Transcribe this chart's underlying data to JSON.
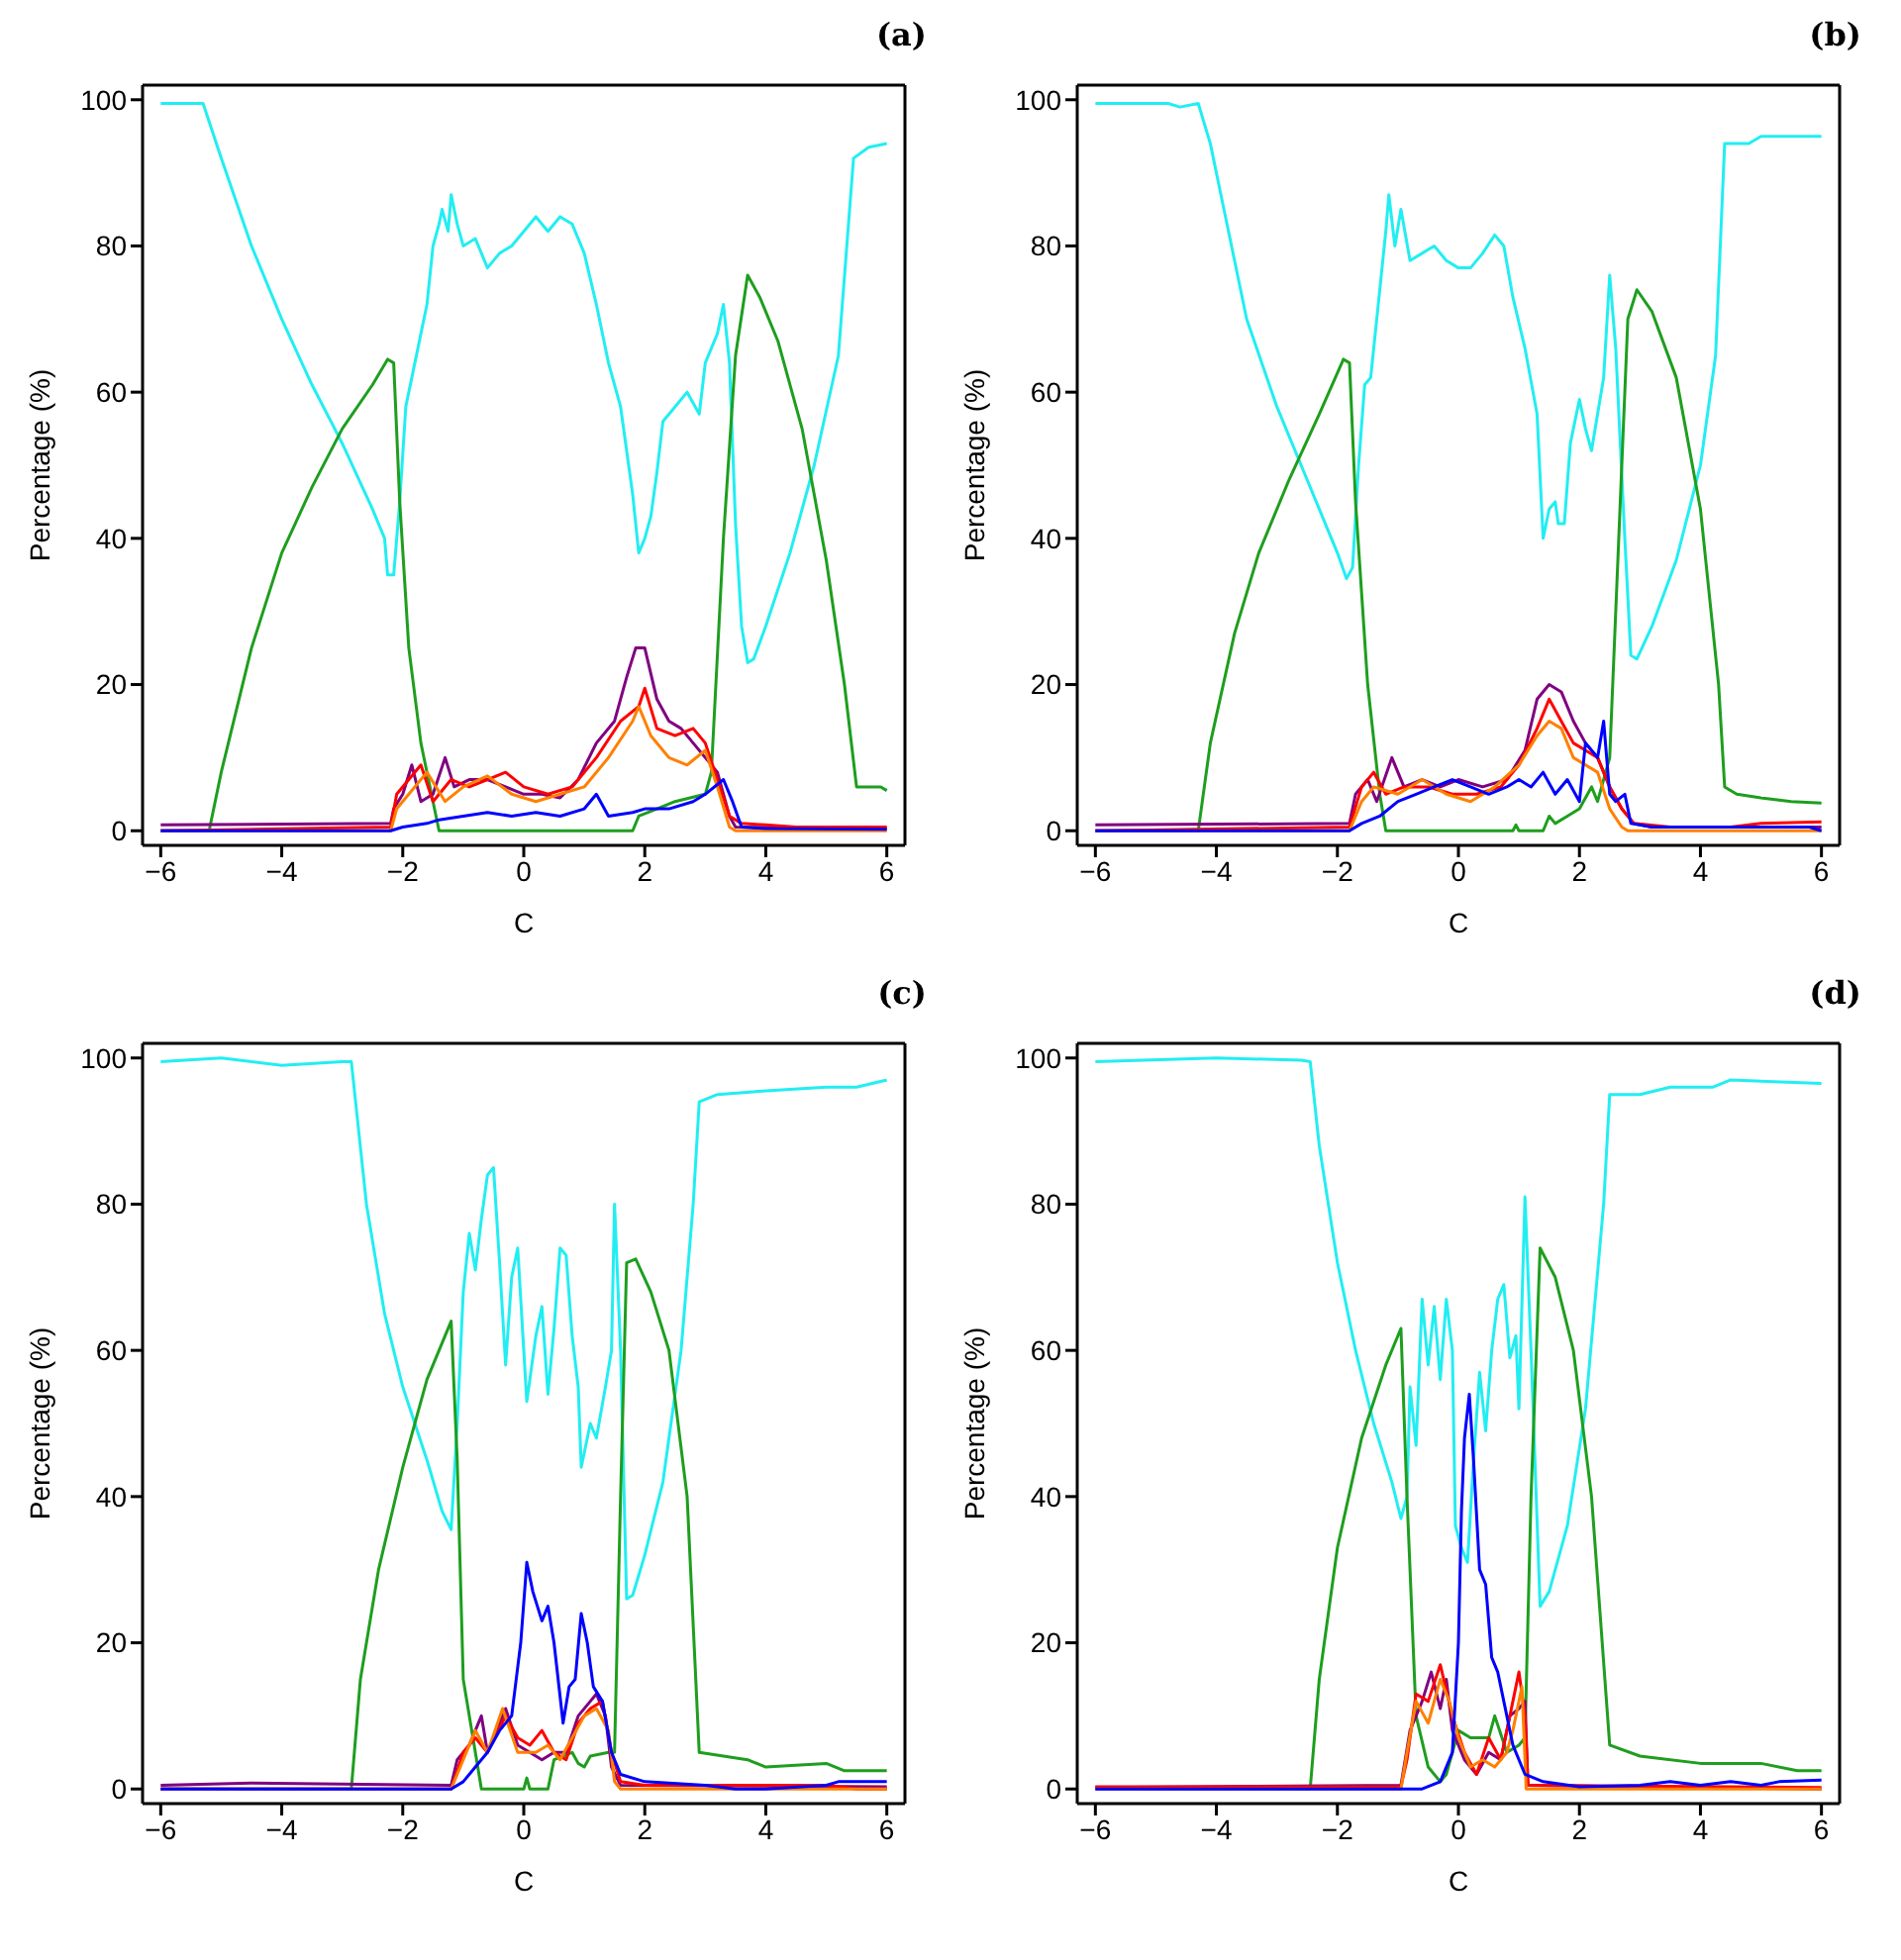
{
  "chart_data": [
    {
      "type": "line",
      "title": "(a)",
      "xlabel": "C",
      "ylabel": "Percentage (%)",
      "xlim": [
        -6.3,
        6.3
      ],
      "xticks": [
        -6,
        -4,
        -2,
        0,
        2,
        4,
        6
      ],
      "ylim": [
        -2,
        102
      ],
      "yticks": [
        0,
        20,
        40,
        60,
        80,
        100
      ],
      "series": [
        {
          "color": "#22eef2",
          "x": [
            -6,
            -5.3,
            -5,
            -4.5,
            -4,
            -3.5,
            -3,
            -2.5,
            -2.3,
            -2.25,
            -2.15,
            -2.05,
            -1.95,
            -1.85,
            -1.7,
            -1.6,
            -1.5,
            -1.4,
            -1.35,
            -1.25,
            -1.2,
            -1.1,
            -1,
            -0.8,
            -0.6,
            -0.4,
            -0.2,
            0,
            0.2,
            0.4,
            0.6,
            0.8,
            1,
            1.2,
            1.4,
            1.6,
            1.8,
            1.9,
            2,
            2.1,
            2.2,
            2.3,
            2.5,
            2.7,
            2.9,
            3,
            3.2,
            3.3,
            3.4,
            3.5,
            3.6,
            3.7,
            3.8,
            4,
            4.4,
            4.8,
            5.2,
            5.45,
            5.7,
            6
          ],
          "values": [
            99.5,
            99.5,
            92,
            80,
            70,
            61,
            53,
            44,
            40,
            35,
            35,
            45,
            58,
            62,
            68,
            72,
            80,
            83,
            85,
            82,
            87,
            83,
            80,
            81,
            77,
            79,
            80,
            82,
            84,
            82,
            84,
            83,
            79,
            72,
            64,
            58,
            46,
            38,
            40,
            43,
            49,
            56,
            58,
            60,
            57,
            64,
            68,
            72,
            64,
            42,
            28,
            23,
            23.5,
            28,
            38,
            50,
            65,
            92,
            93.5,
            94
          ]
        },
        {
          "color": "#1e9e1e",
          "x": [
            -6,
            -5.2,
            -5,
            -4.5,
            -4,
            -3.5,
            -3,
            -2.5,
            -2.25,
            -2.15,
            -2.05,
            -1.9,
            -1.7,
            -1.5,
            -1.4,
            1.8,
            1.9,
            2.2,
            2.5,
            3,
            3.1,
            3.3,
            3.5,
            3.7,
            3.9,
            4.2,
            4.6,
            5,
            5.3,
            5.5,
            5.9,
            6
          ],
          "values": [
            0,
            0,
            8,
            25,
            38,
            47,
            55,
            61,
            64.5,
            64,
            45,
            25,
            12,
            4,
            0,
            0,
            2,
            3,
            4,
            5,
            8,
            40,
            65,
            76,
            73,
            67,
            55,
            37,
            20,
            6,
            6,
            5.5
          ]
        },
        {
          "color": "#800080",
          "x": [
            -6,
            -2.2,
            -2.15,
            -2,
            -1.85,
            -1.7,
            -1.5,
            -1.3,
            -1.15,
            -0.9,
            -0.6,
            -0.3,
            0,
            0.3,
            0.6,
            0.9,
            1.2,
            1.5,
            1.7,
            1.85,
            2,
            2.2,
            2.4,
            2.6,
            2.8,
            3,
            3.2,
            3.4,
            3.5,
            6
          ],
          "values": [
            0.8,
            1,
            3,
            5,
            9,
            4,
            5,
            10,
            6,
            7,
            7,
            6,
            5,
            5,
            4.5,
            7,
            12,
            15,
            21,
            25,
            25,
            18,
            15,
            14,
            12,
            10,
            8,
            2,
            0.5,
            0.3
          ]
        },
        {
          "color": "#ff0000",
          "x": [
            -6,
            -2.2,
            -2.1,
            -1.9,
            -1.7,
            -1.5,
            -1.2,
            -0.9,
            -0.6,
            -0.3,
            0,
            0.4,
            0.8,
            1.2,
            1.6,
            1.9,
            2,
            2.2,
            2.5,
            2.8,
            3,
            3.2,
            3.4,
            3.6,
            4,
            4.5,
            5,
            6
          ],
          "values": [
            0,
            0.5,
            5,
            7,
            9,
            4,
            7,
            6,
            7,
            8,
            6,
            5,
            6,
            10,
            15,
            17,
            19.5,
            14,
            13,
            14,
            12,
            7,
            2,
            1,
            0.8,
            0.5,
            0.5,
            0.5
          ]
        },
        {
          "color": "#ff8000",
          "x": [
            -6,
            -2.2,
            -2.1,
            -1.9,
            -1.6,
            -1.3,
            -1,
            -0.6,
            -0.2,
            0.2,
            0.6,
            1,
            1.4,
            1.8,
            1.9,
            2.1,
            2.4,
            2.7,
            3,
            3.2,
            3.4,
            3.5,
            6
          ],
          "values": [
            0,
            0,
            3,
            5,
            8,
            4,
            6,
            7.5,
            5,
            4,
            5,
            6,
            10,
            15,
            17,
            13,
            10,
            9,
            11,
            6,
            0.5,
            0,
            0
          ]
        },
        {
          "color": "#0000ff",
          "x": [
            -6,
            -2.2,
            -2,
            -1.6,
            -1.4,
            -1,
            -0.6,
            -0.2,
            0.2,
            0.6,
            1,
            1.2,
            1.4,
            1.8,
            2,
            2.4,
            2.8,
            3,
            3.3,
            3.45,
            3.6,
            4,
            6
          ],
          "values": [
            0,
            0,
            0.5,
            1,
            1.5,
            2,
            2.5,
            2,
            2.5,
            2,
            3,
            5,
            2,
            2.5,
            3,
            3,
            4,
            5,
            7,
            4,
            0.5,
            0.3,
            0.2
          ]
        }
      ]
    },
    {
      "type": "line",
      "title": "(b)",
      "xlabel": "C",
      "ylabel": "Percentage (%)",
      "xlim": [
        -6.3,
        6.3
      ],
      "xticks": [
        -6,
        -4,
        -2,
        0,
        2,
        4,
        6
      ],
      "ylim": [
        -2,
        102
      ],
      "yticks": [
        0,
        20,
        40,
        60,
        80,
        100
      ],
      "series": [
        {
          "color": "#22eef2",
          "x": [
            -6,
            -4.8,
            -4.6,
            -4.3,
            -4.1,
            -3.8,
            -3.5,
            -3,
            -2.5,
            -2,
            -1.85,
            -1.75,
            -1.65,
            -1.55,
            -1.45,
            -1.35,
            -1.2,
            -1.15,
            -1.05,
            -0.95,
            -0.8,
            -0.6,
            -0.4,
            -0.2,
            0,
            0.2,
            0.4,
            0.6,
            0.75,
            0.9,
            1.1,
            1.3,
            1.4,
            1.5,
            1.6,
            1.65,
            1.75,
            1.85,
            2,
            2.1,
            2.2,
            2.3,
            2.4,
            2.5,
            2.6,
            2.75,
            2.85,
            2.95,
            3.2,
            3.6,
            4,
            4.25,
            4.4,
            4.8,
            5,
            6
          ],
          "values": [
            99.5,
            99.5,
            99,
            99.5,
            94,
            82,
            70,
            58,
            48,
            38,
            34.5,
            36,
            50,
            61,
            62,
            70,
            82,
            87,
            80,
            85,
            78,
            79,
            80,
            78,
            77,
            77,
            79,
            81.5,
            80,
            73,
            66,
            57,
            40,
            44,
            45,
            42,
            42,
            53,
            59,
            55,
            52,
            57,
            62,
            76,
            66,
            40,
            24,
            23.5,
            28,
            37,
            50,
            65,
            94,
            94,
            95,
            95
          ]
        },
        {
          "color": "#1e9e1e",
          "x": [
            -6,
            -4.3,
            -4.1,
            -3.7,
            -3.3,
            -2.8,
            -2.3,
            -1.9,
            -1.8,
            -1.7,
            -1.5,
            -1.3,
            -1.2,
            0.9,
            0.95,
            1,
            1.4,
            1.5,
            1.6,
            1.8,
            2,
            2.2,
            2.3,
            2.5,
            2.65,
            2.8,
            2.95,
            3.2,
            3.6,
            4,
            4.3,
            4.4,
            4.6,
            5,
            5.5,
            6
          ],
          "values": [
            0,
            0,
            12,
            27,
            38,
            48,
            57,
            64.5,
            64,
            45,
            20,
            5,
            0,
            0,
            0.8,
            0,
            0,
            2,
            1,
            2,
            3,
            6,
            4,
            10,
            40,
            70,
            74,
            71,
            62,
            44,
            20,
            6,
            5,
            4.5,
            4,
            3.8
          ]
        },
        {
          "color": "#800080",
          "x": [
            -6,
            -1.8,
            -1.7,
            -1.5,
            -1.35,
            -1.1,
            -0.9,
            -0.6,
            -0.3,
            0,
            0.4,
            0.8,
            1.1,
            1.3,
            1.5,
            1.7,
            1.9,
            2.1,
            2.3,
            2.5,
            2.7,
            2.9,
            3.2,
            6
          ],
          "values": [
            0.8,
            1,
            5,
            7,
            4,
            10,
            6,
            7,
            6,
            7,
            6,
            7,
            11,
            18,
            20,
            19,
            15,
            12,
            10,
            6,
            3,
            1,
            0.5,
            0.5
          ]
        },
        {
          "color": "#ff0000",
          "x": [
            -6,
            -1.8,
            -1.6,
            -1.4,
            -1.2,
            -0.9,
            -0.5,
            -0.1,
            0.3,
            0.7,
            1,
            1.3,
            1.5,
            1.7,
            1.9,
            2.1,
            2.3,
            2.5,
            2.7,
            2.9,
            3.5,
            4.5,
            5,
            6
          ],
          "values": [
            0,
            0.5,
            6,
            8,
            5,
            6,
            6,
            5,
            5,
            6,
            9,
            14,
            18,
            15,
            12,
            11,
            10,
            6,
            3,
            1,
            0.5,
            0.5,
            1,
            1.2
          ]
        },
        {
          "color": "#ff8000",
          "x": [
            -6,
            -1.8,
            -1.6,
            -1.4,
            -1,
            -0.6,
            -0.2,
            0.2,
            0.6,
            1,
            1.3,
            1.5,
            1.7,
            1.9,
            2.1,
            2.3,
            2.5,
            2.7,
            2.8,
            6
          ],
          "values": [
            0,
            0,
            4,
            6,
            5,
            7,
            5,
            4,
            6,
            9,
            13,
            15,
            14,
            10,
            9,
            8,
            3,
            0.5,
            0,
            0
          ]
        },
        {
          "color": "#0000ff",
          "x": [
            -6,
            -1.8,
            -1.6,
            -1.3,
            -1,
            -0.7,
            -0.4,
            -0.1,
            0.2,
            0.5,
            0.8,
            1,
            1.2,
            1.4,
            1.6,
            1.8,
            2,
            2.1,
            2.3,
            2.4,
            2.5,
            2.6,
            2.75,
            2.85,
            3.2,
            4,
            5,
            5.8,
            6
          ],
          "values": [
            0,
            0,
            1,
            2,
            4,
            5,
            6,
            7,
            6,
            5,
            6,
            7,
            6,
            8,
            5,
            7,
            4,
            12,
            10,
            15,
            5,
            4,
            5,
            1,
            0.5,
            0.5,
            0.5,
            0.5,
            0
          ]
        }
      ]
    },
    {
      "type": "line",
      "title": "(c)",
      "xlabel": "C",
      "ylabel": "Percentage (%)",
      "xlim": [
        -6.3,
        6.3
      ],
      "xticks": [
        -6,
        -4,
        -2,
        0,
        2,
        4,
        6
      ],
      "ylim": [
        -2,
        102
      ],
      "yticks": [
        0,
        20,
        40,
        60,
        80,
        100
      ],
      "series": [
        {
          "color": "#22eef2",
          "x": [
            -6,
            -5,
            -4,
            -3,
            -2.85,
            -2.6,
            -2.3,
            -2,
            -1.6,
            -1.35,
            -1.2,
            -1.1,
            -1,
            -0.9,
            -0.8,
            -0.7,
            -0.6,
            -0.5,
            -0.4,
            -0.3,
            -0.2,
            -0.1,
            0,
            0.05,
            0.2,
            0.3,
            0.4,
            0.5,
            0.6,
            0.7,
            0.8,
            0.9,
            0.95,
            1.1,
            1.2,
            1.35,
            1.45,
            1.5,
            1.6,
            1.7,
            1.8,
            2,
            2.3,
            2.6,
            2.8,
            2.9,
            3.2,
            4,
            5,
            5.5,
            6
          ],
          "values": [
            99.5,
            100,
            99,
            99.5,
            99.5,
            80,
            65,
            55,
            45,
            38,
            35.5,
            50,
            68,
            76,
            71,
            78,
            84,
            85,
            72,
            58,
            70,
            74,
            60,
            53,
            62,
            66,
            54,
            63,
            74,
            73,
            62,
            55,
            44,
            50,
            48,
            55,
            60,
            80,
            60,
            26,
            26.5,
            32,
            42,
            60,
            80,
            94,
            95,
            95.5,
            96,
            96,
            97
          ]
        },
        {
          "color": "#1e9e1e",
          "x": [
            -6,
            -2.85,
            -2.7,
            -2.4,
            -2,
            -1.6,
            -1.2,
            -1.1,
            -1,
            -0.8,
            -0.7,
            0,
            0.05,
            0.1,
            0.4,
            0.5,
            0.8,
            0.9,
            1,
            1.1,
            1.4,
            1.5,
            1.6,
            1.7,
            1.85,
            2.1,
            2.4,
            2.7,
            2.9,
            3.3,
            3.7,
            4,
            5,
            5.3,
            6
          ],
          "values": [
            0,
            0,
            15,
            30,
            44,
            56,
            64,
            45,
            15,
            5,
            0,
            0,
            1.5,
            0,
            0,
            4,
            5,
            3.5,
            3,
            4.5,
            5,
            5,
            40,
            72,
            72.5,
            68,
            60,
            40,
            5,
            4.5,
            4,
            3,
            3.5,
            2.5,
            2.5
          ]
        },
        {
          "color": "#800080",
          "x": [
            -6,
            -4.5,
            -1.2,
            -1.1,
            -0.9,
            -0.7,
            -0.6,
            -0.4,
            -0.3,
            -0.1,
            0.1,
            0.3,
            0.5,
            0.7,
            0.9,
            1.1,
            1.2,
            1.35,
            1.45,
            1.6,
            6
          ],
          "values": [
            0.5,
            0.8,
            0.5,
            4,
            6,
            10,
            5,
            9,
            11,
            6,
            5,
            4,
            5,
            5,
            10,
            12,
            13,
            10,
            3,
            0.5,
            0.3
          ]
        },
        {
          "color": "#ff0000",
          "x": [
            -6,
            -1.2,
            -1,
            -0.8,
            -0.6,
            -0.3,
            -0.1,
            0.1,
            0.3,
            0.5,
            0.7,
            0.9,
            1.1,
            1.3,
            1.45,
            1.6,
            2,
            3,
            4,
            5,
            5.5,
            6
          ],
          "values": [
            0,
            0,
            5,
            7,
            5,
            10,
            7,
            6,
            8,
            5,
            4,
            9,
            11,
            12,
            5,
            1,
            0.5,
            0.5,
            0.5,
            0.5,
            0,
            0
          ]
        },
        {
          "color": "#ff8000",
          "x": [
            -6,
            -1.2,
            -1,
            -0.8,
            -0.6,
            -0.35,
            -0.1,
            0.2,
            0.4,
            0.6,
            0.8,
            1,
            1.2,
            1.4,
            1.5,
            1.6,
            6
          ],
          "values": [
            0,
            0,
            4,
            8,
            5,
            11,
            5,
            5,
            6,
            4,
            7,
            10,
            11,
            8,
            1,
            0,
            0
          ]
        },
        {
          "color": "#0000ff",
          "x": [
            -6,
            -1.2,
            -1,
            -0.8,
            -0.6,
            -0.4,
            -0.2,
            -0.05,
            0.05,
            0.15,
            0.3,
            0.4,
            0.5,
            0.65,
            0.75,
            0.85,
            0.95,
            1.05,
            1.15,
            1.3,
            1.45,
            1.6,
            2,
            3,
            3.5,
            4,
            5,
            5.2,
            6
          ],
          "values": [
            0,
            0,
            1,
            3,
            5,
            8,
            10,
            20,
            31,
            27,
            23,
            25,
            20,
            9,
            14,
            15,
            24,
            20,
            14,
            12,
            5,
            2,
            1,
            0.5,
            0,
            0,
            0.5,
            1,
            1
          ]
        }
      ]
    },
    {
      "type": "line",
      "title": "(d)",
      "xlabel": "C",
      "ylabel": "Percentage (%)",
      "xlim": [
        -6.3,
        6.3
      ],
      "xticks": [
        -6,
        -4,
        -2,
        0,
        2,
        4,
        6
      ],
      "ylim": [
        -2,
        102
      ],
      "yticks": [
        0,
        20,
        40,
        60,
        80,
        100
      ],
      "series": [
        {
          "color": "#22eef2",
          "x": [
            -6,
            -4,
            -2.6,
            -2.45,
            -2.3,
            -2,
            -1.7,
            -1.4,
            -1.1,
            -0.95,
            -0.85,
            -0.8,
            -0.7,
            -0.6,
            -0.5,
            -0.4,
            -0.3,
            -0.2,
            -0.1,
            -0.05,
            0.05,
            0.15,
            0.25,
            0.35,
            0.45,
            0.55,
            0.65,
            0.75,
            0.85,
            0.95,
            1,
            1.1,
            1.2,
            1.35,
            1.5,
            1.8,
            2.1,
            2.4,
            2.5,
            3,
            3.5,
            4.2,
            4.5,
            6
          ],
          "values": [
            99.5,
            100,
            99.7,
            99.5,
            88,
            72,
            60,
            50,
            42,
            37,
            40,
            55,
            47,
            67,
            58,
            66,
            56,
            67,
            60,
            36,
            33,
            31,
            45,
            57,
            49,
            60,
            67,
            69,
            59,
            62,
            52,
            81,
            60,
            25,
            27,
            36,
            52,
            80,
            95,
            95,
            96,
            96,
            97,
            96.5
          ]
        },
        {
          "color": "#1e9e1e",
          "x": [
            -6,
            -2.45,
            -2.3,
            -2,
            -1.6,
            -1.2,
            -0.95,
            -0.85,
            -0.7,
            -0.5,
            -0.3,
            -0.2,
            -0.1,
            0,
            0.2,
            0.5,
            0.6,
            0.8,
            1,
            1.1,
            1.2,
            1.35,
            1.6,
            1.9,
            2.2,
            2.5,
            3,
            4,
            5,
            5.6,
            6
          ],
          "values": [
            0,
            0,
            15,
            33,
            48,
            58,
            63,
            40,
            10,
            3,
            1,
            2,
            5,
            8,
            7,
            7,
            10,
            5,
            6,
            7,
            40,
            74,
            70,
            60,
            40,
            6,
            4.5,
            3.5,
            3.5,
            2.5,
            2.5
          ]
        },
        {
          "color": "#800080",
          "x": [
            -6,
            -0.95,
            -0.8,
            -0.6,
            -0.45,
            -0.3,
            -0.2,
            -0.1,
            0.1,
            0.3,
            0.5,
            0.7,
            0.85,
            1,
            1.1,
            1.15,
            6
          ],
          "values": [
            0.2,
            0.5,
            8,
            12,
            16,
            11,
            15,
            8,
            4,
            2,
            5,
            4,
            10,
            11,
            12,
            0.5,
            0
          ]
        },
        {
          "color": "#ff0000",
          "x": [
            -6,
            -0.95,
            -0.85,
            -0.7,
            -0.5,
            -0.3,
            -0.1,
            0.1,
            0.3,
            0.5,
            0.7,
            0.9,
            1,
            1.1,
            1.15,
            6
          ],
          "values": [
            0.3,
            0.3,
            4,
            13,
            12,
            17,
            10,
            5,
            2,
            7,
            4,
            12,
            16,
            10,
            0.5,
            0.2
          ]
        },
        {
          "color": "#ff8000",
          "x": [
            -6,
            -0.95,
            -0.85,
            -0.7,
            -0.5,
            -0.3,
            -0.15,
            0,
            0.2,
            0.4,
            0.6,
            0.8,
            0.9,
            1.05,
            1.12,
            6
          ],
          "values": [
            0,
            0,
            5,
            12,
            9,
            15,
            12,
            7,
            3,
            4,
            3,
            5,
            8,
            14,
            0,
            0
          ]
        },
        {
          "color": "#0000ff",
          "x": [
            -6,
            -0.6,
            -0.3,
            -0.1,
            0,
            0.05,
            0.1,
            0.18,
            0.25,
            0.35,
            0.45,
            0.55,
            0.65,
            0.75,
            0.9,
            1.1,
            1.4,
            2,
            3,
            3.5,
            4,
            4.5,
            5,
            5.3,
            6
          ],
          "values": [
            0,
            0,
            1,
            5,
            20,
            38,
            48,
            54,
            45,
            30,
            28,
            18,
            16,
            12,
            6,
            2,
            1,
            0.3,
            0.5,
            1,
            0.5,
            1,
            0.5,
            1,
            1.2
          ]
        }
      ]
    }
  ]
}
